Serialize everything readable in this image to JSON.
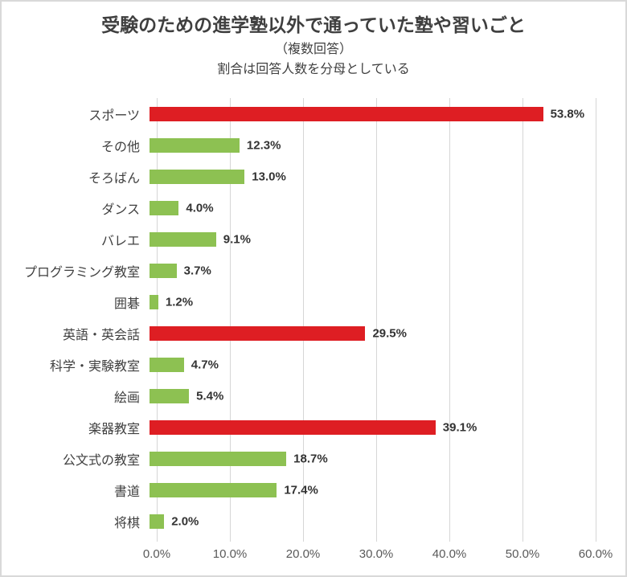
{
  "header": {
    "title": "受験のための進学塾以外で通っていた塾や習いごと",
    "subtitle1": "（複数回答）",
    "subtitle2": "割合は回答人数を分母としている"
  },
  "chart_data": {
    "type": "bar",
    "orientation": "horizontal",
    "title": "受験のための進学塾以外で通っていた塾や習いごと（複数回答）",
    "categories": [
      "スポーツ",
      "その他",
      "そろばん",
      "ダンス",
      "バレエ",
      "プログラミング教室",
      "囲碁",
      "英語・英会話",
      "科学・実験教室",
      "絵画",
      "楽器教室",
      "公文式の教室",
      "書道",
      "将棋"
    ],
    "values": [
      53.8,
      12.3,
      13.0,
      4.0,
      9.1,
      3.7,
      1.2,
      29.5,
      4.7,
      5.4,
      39.1,
      18.7,
      17.4,
      2.0
    ],
    "value_labels": [
      "53.8%",
      "12.3%",
      "13.0%",
      "4.0%",
      "9.1%",
      "3.7%",
      "1.2%",
      "29.5%",
      "4.7%",
      "5.4%",
      "39.1%",
      "18.7%",
      "17.4%",
      "2.0%"
    ],
    "highlight_indices": [
      0,
      7,
      10
    ],
    "colors": {
      "highlight": "#de1e23",
      "normal": "#8dc152",
      "gridline": "#d6d6d6"
    },
    "x_ticks": [
      "0.0%",
      "10.0%",
      "20.0%",
      "30.0%",
      "40.0%",
      "50.0%",
      "60.0%"
    ],
    "xlim": [
      0,
      60
    ],
    "xlabel": "",
    "ylabel": "",
    "grid": true,
    "legend": false
  }
}
